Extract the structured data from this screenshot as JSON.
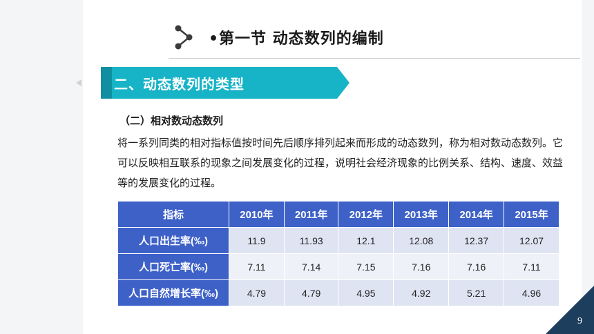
{
  "header": {
    "title": "•第一节  动态数列的编制",
    "icon": "share-nodes-icon"
  },
  "section": {
    "ribbon_title": "二、动态数列的类型",
    "subheading": "（二）相对数动态数列",
    "paragraph": "将一系列同类的相对指标值按时间先后顺序排列起来而形成的动态数列，称为相对数动态数列。它可以反映相互联系的现象之间发展变化的过程，说明社会经济现象的比例关系、结构、速度、效益等的发展变化的过程。"
  },
  "table": {
    "headers": [
      "指标",
      "2010年",
      "2011年",
      "2012年",
      "2013年",
      "2014年",
      "2015年"
    ],
    "rows": [
      {
        "label": "人口出生率(‰)",
        "values": [
          "11.9",
          "11.93",
          "12.1",
          "12.08",
          "12.37",
          "12.07"
        ]
      },
      {
        "label": "人口死亡率(‰)",
        "values": [
          "7.11",
          "7.14",
          "7.15",
          "7.16",
          "7.16",
          "7.11"
        ]
      },
      {
        "label": "人口自然增长率(‰)",
        "values": [
          "4.79",
          "4.79",
          "4.95",
          "4.92",
          "5.21",
          "4.96"
        ]
      }
    ]
  },
  "footer": {
    "page_number": "9"
  },
  "colors": {
    "ribbon": "#17b3c7",
    "table_header": "#3e61c8",
    "corner": "#1e3e5e"
  }
}
